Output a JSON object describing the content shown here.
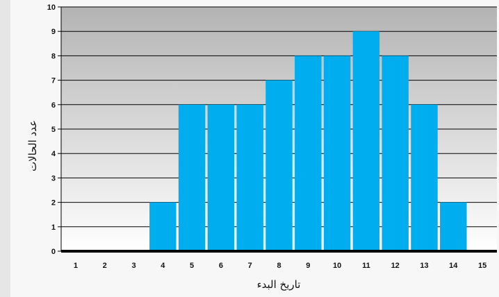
{
  "chart_data": {
    "type": "bar",
    "xlabel": "تاريخ البدء",
    "ylabel": "عدد الحالات",
    "categories": [
      "1",
      "2",
      "3",
      "4",
      "5",
      "6",
      "7",
      "8",
      "9",
      "10",
      "11",
      "12",
      "13",
      "14",
      "15"
    ],
    "values": [
      0,
      0,
      0,
      2,
      6,
      6,
      6,
      7,
      8,
      8,
      9,
      8,
      6,
      2,
      0
    ],
    "ylim": [
      0,
      10
    ],
    "yticks": [
      "0",
      "1",
      "2",
      "3",
      "4",
      "5",
      "6",
      "7",
      "8",
      "9",
      "10"
    ],
    "grid": true,
    "bar_color": "#00aeef",
    "background_gradient": [
      "#b3b3b3",
      "#ffffff"
    ]
  }
}
